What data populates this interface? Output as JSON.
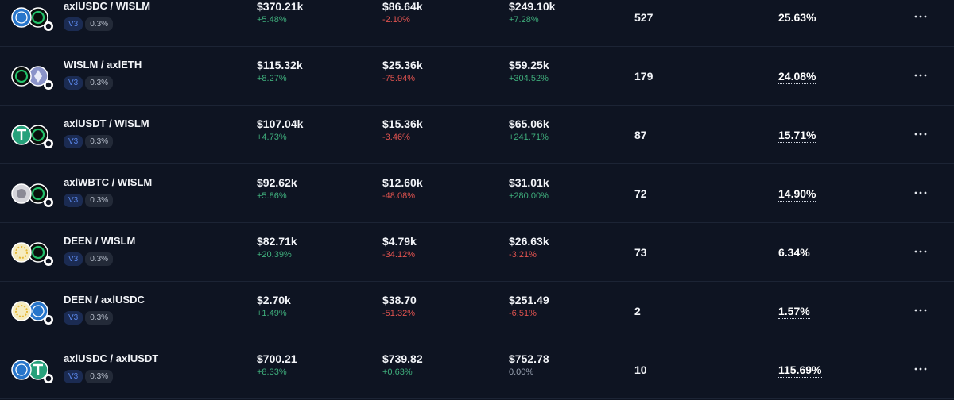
{
  "table": {
    "rows": [
      {
        "pair": "axlUSDC / WISLM",
        "version": "V3",
        "fee": "0.3%",
        "tvl": "$370.21k",
        "tvl_change": "+5.48%",
        "volume": "$86.64k",
        "volume_change": "-2.10%",
        "value": "$249.10k",
        "value_change": "+7.28%",
        "count": "527",
        "apr": "25.63%"
      },
      {
        "pair": "WISLM / axlETH",
        "version": "V3",
        "fee": "0.3%",
        "tvl": "$115.32k",
        "tvl_change": "+8.27%",
        "volume": "$25.36k",
        "volume_change": "-75.94%",
        "value": "$59.25k",
        "value_change": "+304.52%",
        "count": "179",
        "apr": "24.08%"
      },
      {
        "pair": "axlUSDT / WISLM",
        "version": "V3",
        "fee": "0.3%",
        "tvl": "$107.04k",
        "tvl_change": "+4.73%",
        "volume": "$15.36k",
        "volume_change": "-3.46%",
        "value": "$65.06k",
        "value_change": "+241.71%",
        "count": "87",
        "apr": "15.71%"
      },
      {
        "pair": "axlWBTC / WISLM",
        "version": "V3",
        "fee": "0.3%",
        "tvl": "$92.62k",
        "tvl_change": "+5.86%",
        "volume": "$12.60k",
        "volume_change": "-48.08%",
        "value": "$31.01k",
        "value_change": "+280.00%",
        "count": "72",
        "apr": "14.90%"
      },
      {
        "pair": "DEEN / WISLM",
        "version": "V3",
        "fee": "0.3%",
        "tvl": "$82.71k",
        "tvl_change": "+20.39%",
        "volume": "$4.79k",
        "volume_change": "-34.12%",
        "value": "$26.63k",
        "value_change": "-3.21%",
        "count": "73",
        "apr": "6.34%"
      },
      {
        "pair": "DEEN / axlUSDC",
        "version": "V3",
        "fee": "0.3%",
        "tvl": "$2.70k",
        "tvl_change": "+1.49%",
        "volume": "$38.70",
        "volume_change": "-51.32%",
        "value": "$251.49",
        "value_change": "-6.51%",
        "count": "2",
        "apr": "1.57%"
      },
      {
        "pair": "axlUSDC / axlUSDT",
        "version": "V3",
        "fee": "0.3%",
        "tvl": "$700.21",
        "tvl_change": "+8.33%",
        "volume": "$739.82",
        "volume_change": "+0.63%",
        "value": "$752.78",
        "value_change": "0.00%",
        "count": "10",
        "apr": "115.69%"
      }
    ]
  }
}
